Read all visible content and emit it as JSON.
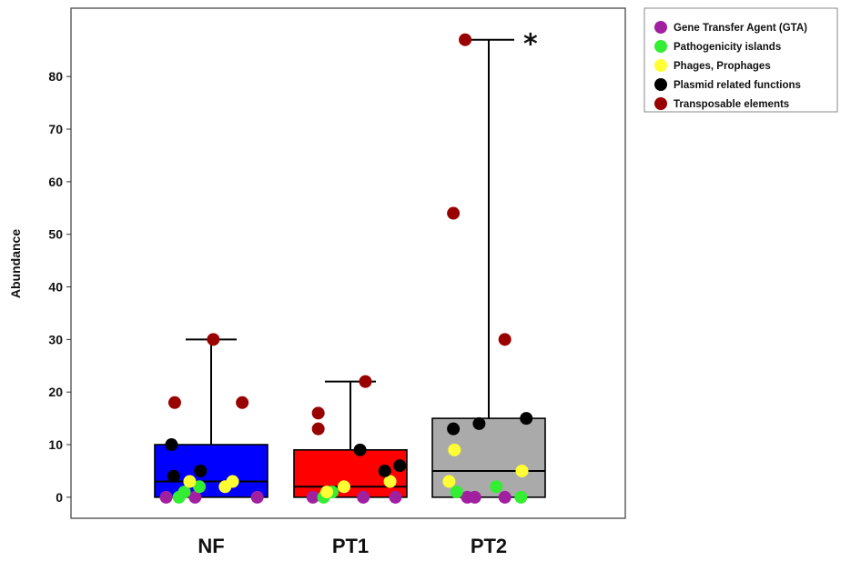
{
  "chart_data": {
    "type": "box",
    "title": "",
    "xlabel": "",
    "ylabel": "Abundance",
    "ylim": [
      -4,
      93
    ],
    "yticks": [
      0,
      10,
      20,
      30,
      40,
      50,
      60,
      70,
      80
    ],
    "categories": [
      "NF",
      "PT1",
      "PT2"
    ],
    "box_colors": [
      "#0000ff",
      "#ff0000",
      "#aaaaaa"
    ],
    "boxes": [
      {
        "category": "NF",
        "min": 0,
        "q1": 0,
        "median": 3,
        "q3": 10,
        "max": 30
      },
      {
        "category": "PT1",
        "min": 0,
        "q1": 0,
        "median": 2,
        "q3": 9,
        "max": 22
      },
      {
        "category": "PT2",
        "min": 0,
        "q1": 0,
        "median": 5,
        "q3": 15,
        "max": 87
      }
    ],
    "series": [
      {
        "name": "Gene Transfer Agent (GTA)",
        "color": "#a020a0",
        "points": [
          [
            "NF",
            -0.42,
            0
          ],
          [
            "NF",
            -0.15,
            0
          ],
          [
            "NF",
            0.43,
            0
          ],
          [
            "PT1",
            -0.35,
            0
          ],
          [
            "PT1",
            0.12,
            0
          ],
          [
            "PT1",
            0.42,
            0
          ],
          [
            "PT2",
            -0.2,
            0
          ],
          [
            "PT2",
            -0.13,
            0
          ],
          [
            "PT2",
            0.15,
            0
          ]
        ]
      },
      {
        "name": "Pathogenicity islands",
        "color": "#33ee33",
        "points": [
          [
            "NF",
            -0.3,
            0
          ],
          [
            "NF",
            -0.25,
            1
          ],
          [
            "NF",
            -0.11,
            2
          ],
          [
            "PT1",
            -0.25,
            0
          ],
          [
            "PT1",
            -0.17,
            1
          ],
          [
            "PT2",
            -0.3,
            1
          ],
          [
            "PT2",
            0.07,
            2
          ],
          [
            "PT2",
            0.3,
            0
          ]
        ]
      },
      {
        "name": "Phages, Prophages",
        "color": "#ffff33",
        "points": [
          [
            "NF",
            -0.2,
            3
          ],
          [
            "NF",
            0.13,
            2
          ],
          [
            "NF",
            0.2,
            3
          ],
          [
            "PT1",
            -0.22,
            1
          ],
          [
            "PT1",
            -0.06,
            2
          ],
          [
            "PT1",
            0.37,
            3
          ],
          [
            "PT2",
            -0.37,
            3
          ],
          [
            "PT2",
            -0.32,
            9
          ],
          [
            "PT2",
            0.31,
            5
          ]
        ]
      },
      {
        "name": "Plasmid related functions",
        "color": "#000000",
        "points": [
          [
            "NF",
            -0.37,
            10
          ],
          [
            "NF",
            -0.35,
            4
          ],
          [
            "NF",
            -0.1,
            5
          ],
          [
            "PT1",
            0.09,
            9
          ],
          [
            "PT1",
            0.32,
            5
          ],
          [
            "PT1",
            0.46,
            6
          ],
          [
            "PT2",
            -0.33,
            13
          ],
          [
            "PT2",
            -0.09,
            14
          ],
          [
            "PT2",
            0.35,
            15
          ]
        ]
      },
      {
        "name": "Transposable elements",
        "color": "#990000",
        "points": [
          [
            "NF",
            -0.34,
            18
          ],
          [
            "NF",
            0.02,
            30
          ],
          [
            "NF",
            0.29,
            18
          ],
          [
            "PT1",
            -0.3,
            16
          ],
          [
            "PT1",
            -0.3,
            13
          ],
          [
            "PT1",
            0.14,
            22
          ],
          [
            "PT2",
            -0.33,
            54
          ],
          [
            "PT2",
            -0.22,
            87
          ],
          [
            "PT2",
            0.15,
            30
          ]
        ]
      }
    ],
    "annotations": [
      {
        "text": "*",
        "category": "PT2",
        "y": 87
      }
    ],
    "legend_position": "top-right",
    "grid": false
  }
}
